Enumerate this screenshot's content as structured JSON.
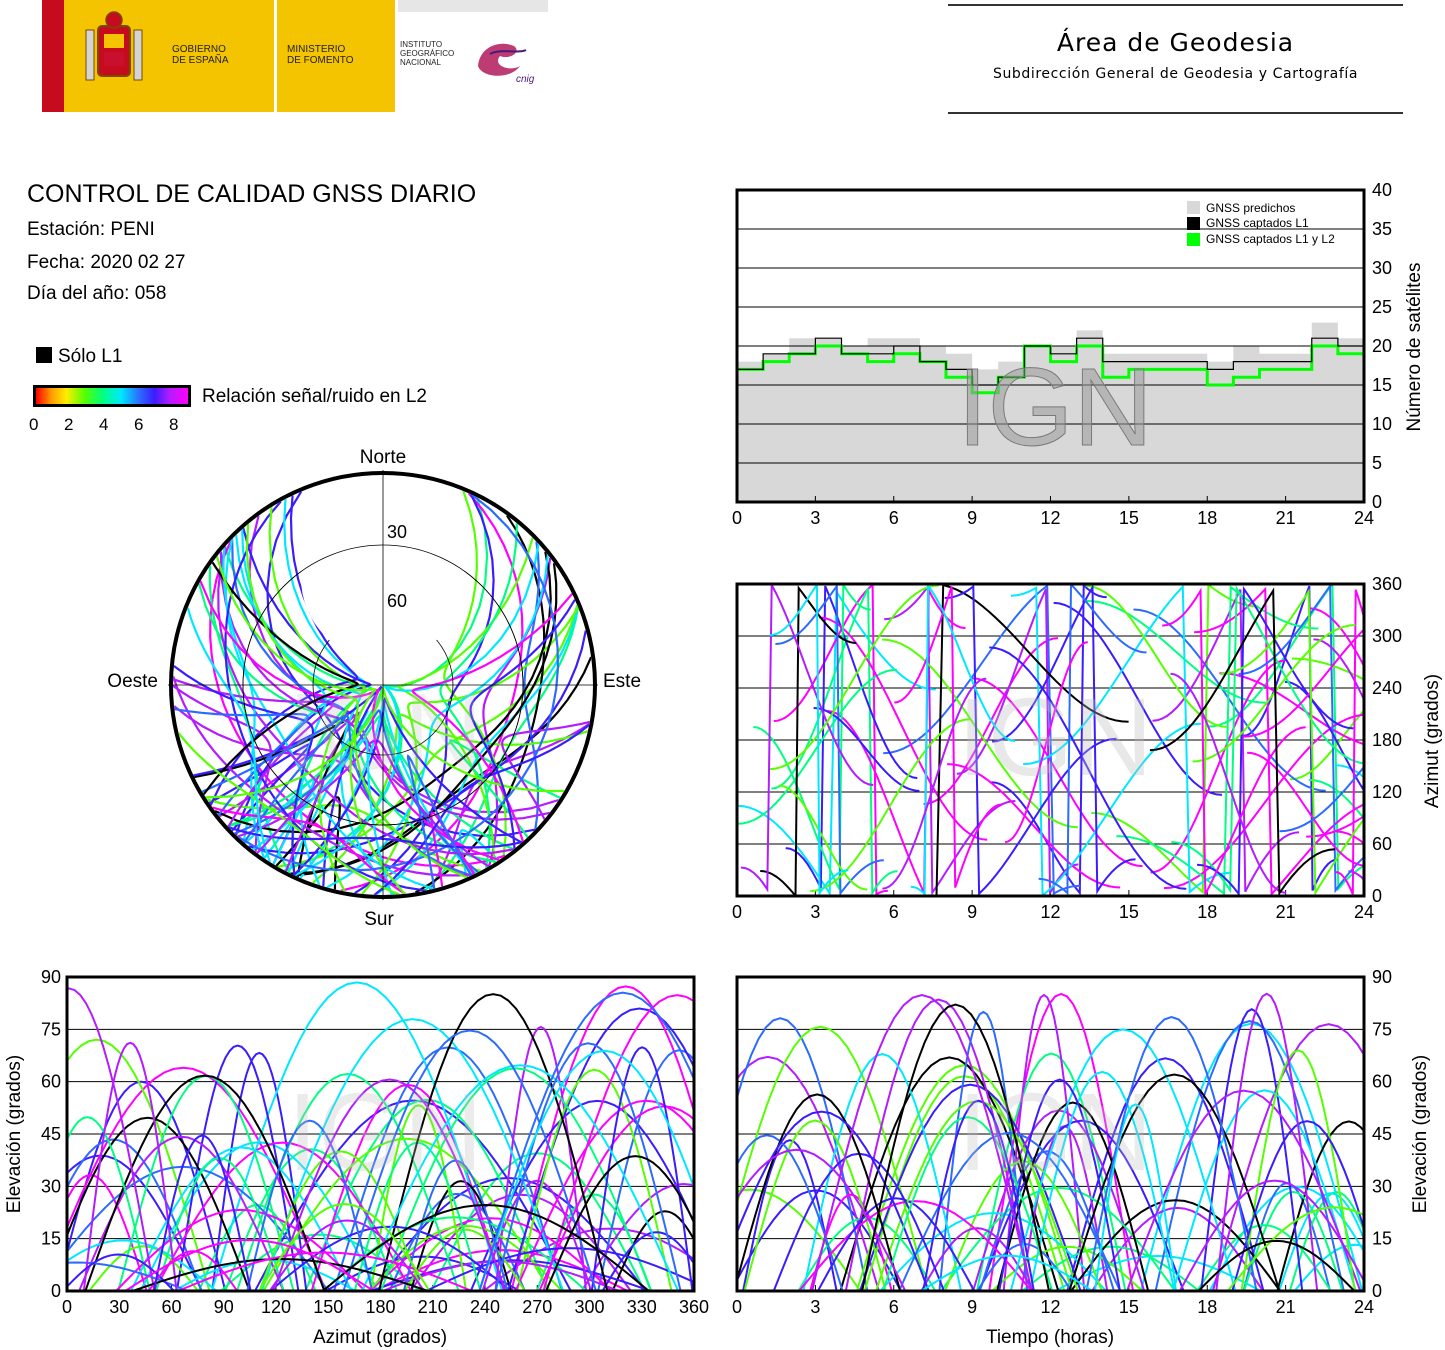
{
  "header": {
    "logos": {
      "gobierno": "GOBIERNO\nDE ESPAÑA",
      "ministerio": "MINISTERIO\nDE FOMENTO",
      "instituto": "INSTITUTO\nGEOGRÁFICO\nNACIONAL",
      "cnig": "cnig"
    },
    "area_title": "Área de Geodesia",
    "area_subtitle": "Subdirección General de Geodesia y Cartografía"
  },
  "info": {
    "title": "CONTROL DE CALIDAD GNSS DIARIO",
    "station": "Estación: PENI",
    "date": "Fecha: 2020 02 27",
    "doy": "Día del año: 058"
  },
  "legend": {
    "l1_only": "Sólo L1",
    "snr_label": "Relación señal/ruido en L2",
    "snr_ticks": [
      "0",
      "2",
      "4",
      "6",
      "8"
    ]
  },
  "watermark": "IGN",
  "colors": {
    "predicted": "#d8d8d8",
    "l1": "#000000",
    "l1l2": "#00ff00",
    "snr_scale": [
      "#ff0000",
      "#ff9a00",
      "#ffee00",
      "#55ff00",
      "#00ff80",
      "#00e8ff",
      "#2d6bff",
      "#3a1cff",
      "#b41cff",
      "#ff00ff"
    ]
  },
  "chart_data": [
    {
      "id": "skyplot",
      "type": "scatter",
      "title": "",
      "directions": {
        "n": "Norte",
        "s": "Sur",
        "e": "Este",
        "w": "Oeste"
      },
      "rings": [
        "30",
        "60"
      ]
    },
    {
      "id": "satellites",
      "type": "line",
      "ylabel": "Número de satélites",
      "xlim": [
        0,
        24
      ],
      "ylim": [
        0,
        40
      ],
      "xticks": [
        "0",
        "3",
        "6",
        "9",
        "12",
        "15",
        "18",
        "21",
        "24"
      ],
      "yticks": [
        "0",
        "5",
        "10",
        "15",
        "20",
        "25",
        "30",
        "35",
        "40"
      ],
      "legend_position": "top-right",
      "series": [
        {
          "name": "GNSS predichos",
          "x": [
            0,
            1,
            2,
            3,
            4,
            5,
            6,
            7,
            8,
            9,
            10,
            11,
            12,
            13,
            14,
            15,
            16,
            17,
            18,
            19,
            20,
            21,
            22,
            23,
            24
          ],
          "values": [
            18,
            19,
            21,
            21,
            20,
            21,
            21,
            20,
            19,
            17,
            18,
            20,
            20,
            22,
            19,
            19,
            19,
            19,
            18,
            20,
            19,
            19,
            23,
            21,
            19
          ]
        },
        {
          "name": "GNSS captados L1",
          "x": [
            0,
            1,
            2,
            3,
            4,
            5,
            6,
            7,
            8,
            9,
            10,
            11,
            12,
            13,
            14,
            15,
            16,
            17,
            18,
            19,
            20,
            21,
            22,
            23,
            24
          ],
          "values": [
            17,
            19,
            19,
            21,
            19,
            19,
            20,
            18,
            17,
            15,
            16,
            20,
            19,
            21,
            18,
            18,
            18,
            18,
            17,
            18,
            18,
            18,
            21,
            20,
            17
          ]
        },
        {
          "name": "GNSS captados L1 y L2",
          "x": [
            0,
            1,
            2,
            3,
            4,
            5,
            6,
            7,
            8,
            9,
            10,
            11,
            12,
            13,
            14,
            15,
            16,
            17,
            18,
            19,
            20,
            21,
            22,
            23,
            24
          ],
          "values": [
            17,
            18,
            19,
            20,
            19,
            18,
            19,
            18,
            16,
            14,
            16,
            20,
            18,
            20,
            16,
            17,
            17,
            17,
            15,
            16,
            17,
            17,
            20,
            19,
            17
          ]
        }
      ]
    },
    {
      "id": "azimuth_time",
      "type": "scatter",
      "ylabel": "Azimut (grados)",
      "xlim": [
        0,
        24
      ],
      "ylim": [
        0,
        360
      ],
      "xticks": [
        "0",
        "3",
        "6",
        "9",
        "12",
        "15",
        "18",
        "21",
        "24"
      ],
      "yticks": [
        "0",
        "60",
        "120",
        "180",
        "240",
        "300",
        "360"
      ]
    },
    {
      "id": "elevation_azimuth",
      "type": "scatter",
      "xlabel": "Azimut (grados)",
      "ylabel": "Elevación (grados)",
      "xlim": [
        0,
        360
      ],
      "ylim": [
        0,
        90
      ],
      "xticks": [
        "0",
        "30",
        "60",
        "90",
        "120",
        "150",
        "180",
        "210",
        "240",
        "270",
        "300",
        "330",
        "360"
      ],
      "yticks": [
        "0",
        "15",
        "30",
        "45",
        "60",
        "75",
        "90"
      ]
    },
    {
      "id": "elevation_time",
      "type": "scatter",
      "xlabel": "Tiempo (horas)",
      "ylabel": "Elevación (grados)",
      "xlim": [
        0,
        24
      ],
      "ylim": [
        0,
        90
      ],
      "xticks": [
        "0",
        "3",
        "6",
        "9",
        "12",
        "15",
        "18",
        "21",
        "24"
      ],
      "yticks": [
        "0",
        "15",
        "30",
        "45",
        "60",
        "75",
        "90"
      ]
    }
  ]
}
